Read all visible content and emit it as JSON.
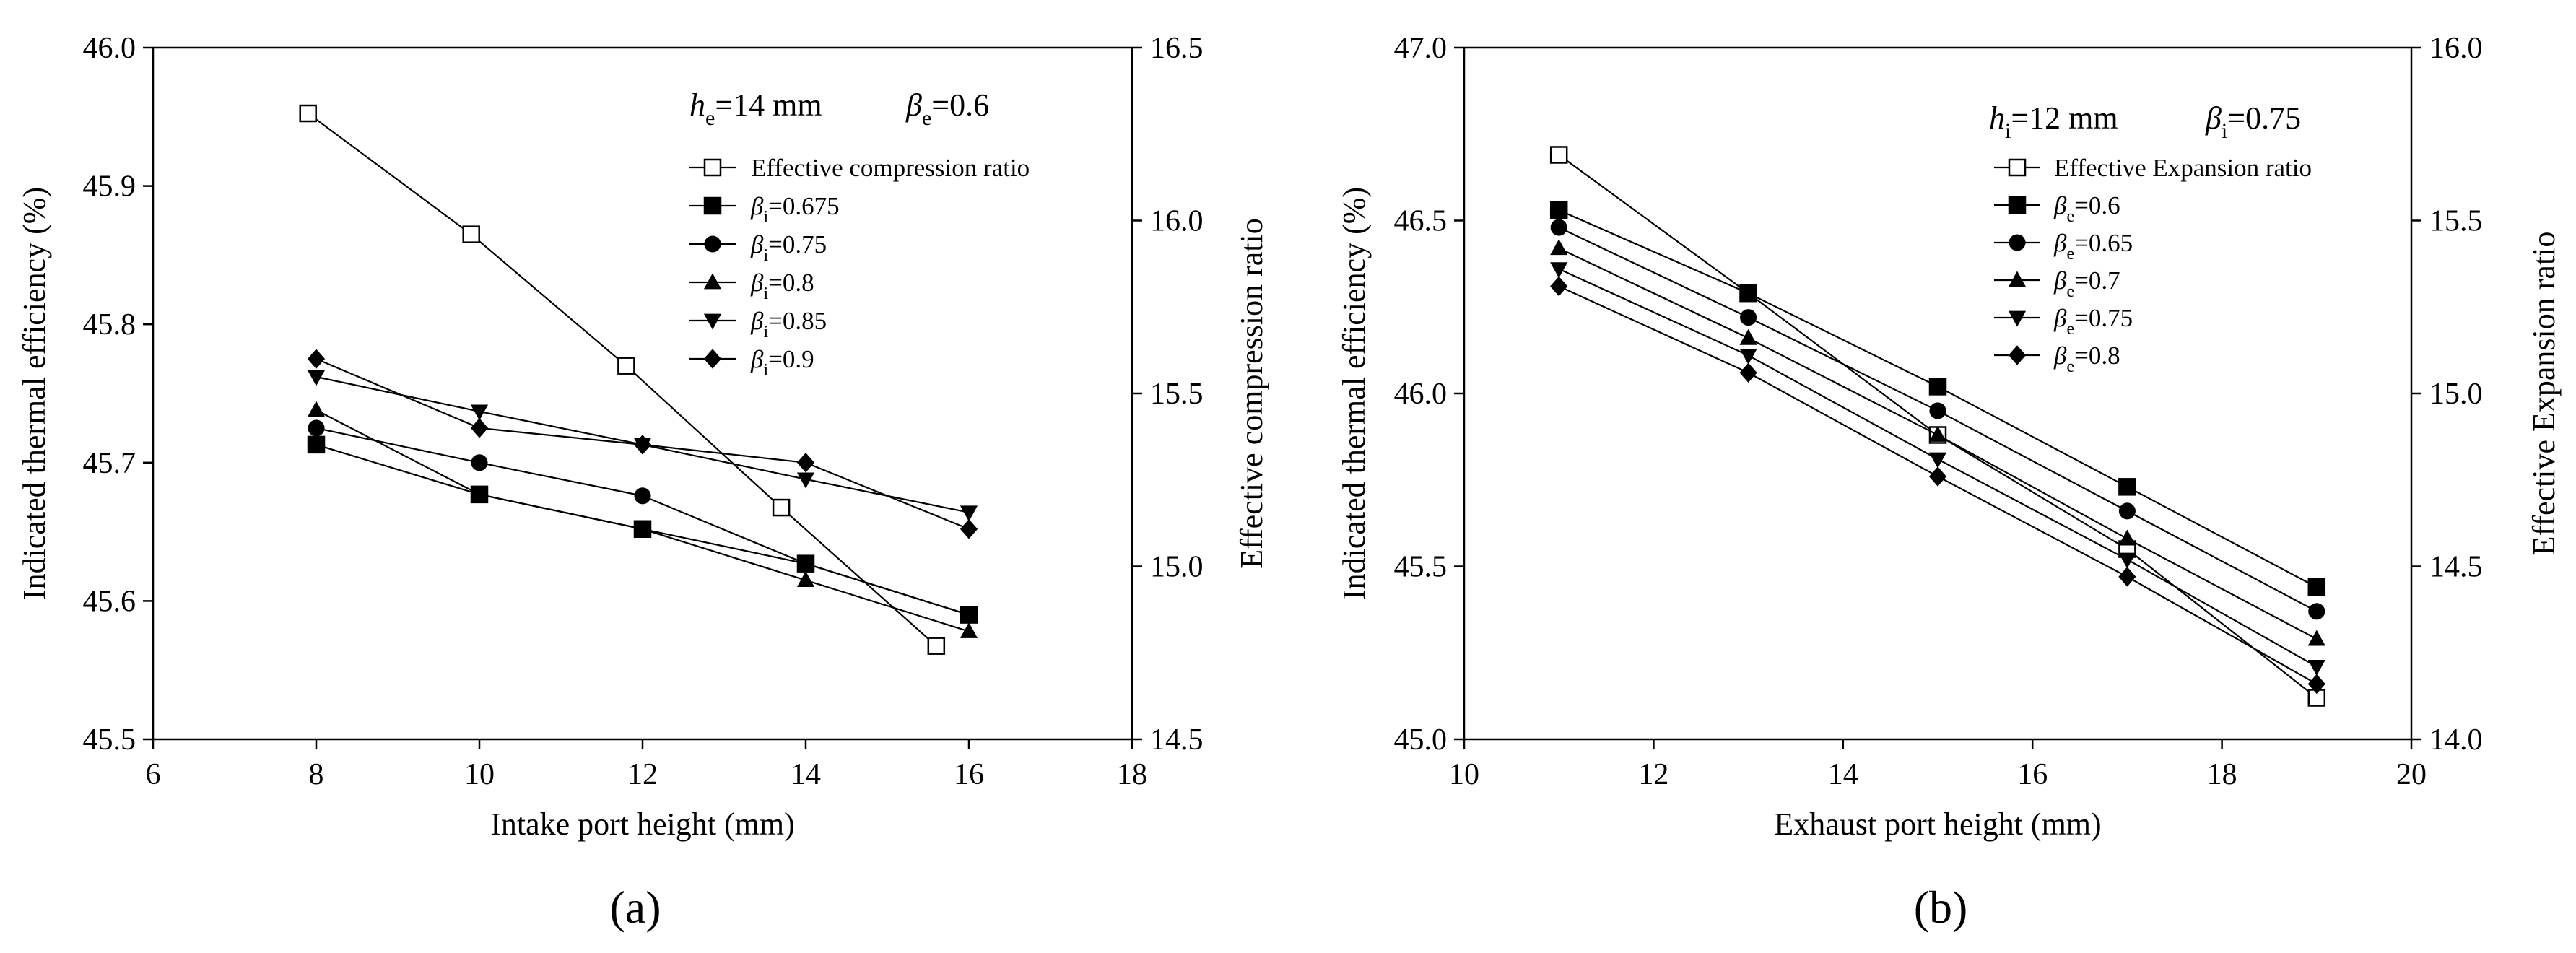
{
  "chart_data": [
    {
      "type": "line",
      "panel_label": "(a)",
      "xlabel": "Intake port height (mm)",
      "ylabel": "Indicated thermal efficiency (%)",
      "y2label": "Effective compression ratio",
      "xlim": [
        6,
        18
      ],
      "ylim": [
        45.5,
        46.0
      ],
      "y2lim": [
        14.5,
        16.5
      ],
      "xticks": [
        "6",
        "8",
        "10",
        "12",
        "14",
        "16",
        "18"
      ],
      "yticks": [
        "45.5",
        "45.6",
        "45.7",
        "45.8",
        "45.9",
        "46.0"
      ],
      "y2ticks": [
        "14.5",
        "15.0",
        "15.5",
        "16.0",
        "16.5"
      ],
      "annotation": {
        "h_sym": "h",
        "h_sub": "e",
        "h_val": "=14 mm",
        "beta_sym": "β",
        "beta_sub": "e",
        "beta_val": "=0.6"
      },
      "legend_position": "top-right",
      "series": [
        {
          "name": "Effective compression ratio",
          "label_text": "Effective compression ratio",
          "marker": "square-open",
          "axis": "right",
          "x": [
            7.9,
            9.9,
            11.8,
            13.7,
            15.6
          ],
          "y": [
            16.31,
            15.96,
            15.58,
            15.17,
            14.77
          ]
        },
        {
          "name": "βi=0.675",
          "label_sym": "β",
          "label_sub": "i",
          "label_val": "=0.675",
          "marker": "square",
          "axis": "left",
          "x": [
            8,
            10,
            12,
            14,
            16
          ],
          "y": [
            45.713,
            45.677,
            45.652,
            45.627,
            45.59
          ]
        },
        {
          "name": "βi=0.75",
          "label_sym": "β",
          "label_sub": "i",
          "label_val": "=0.75",
          "marker": "circle",
          "axis": "left",
          "x": [
            8,
            10,
            12,
            14,
            16
          ],
          "y": [
            45.725,
            45.7,
            45.676,
            45.627,
            45.59
          ]
        },
        {
          "name": "βi=0.8",
          "label_sym": "β",
          "label_sub": "i",
          "label_val": "=0.8",
          "marker": "triangle-up",
          "axis": "left",
          "x": [
            8,
            10,
            12,
            14,
            16
          ],
          "y": [
            45.738,
            45.677,
            45.652,
            45.615,
            45.578
          ]
        },
        {
          "name": "βi=0.85",
          "label_sym": "β",
          "label_sub": "i",
          "label_val": "=0.85",
          "marker": "triangle-down",
          "axis": "left",
          "x": [
            8,
            10,
            12,
            14,
            16
          ],
          "y": [
            45.762,
            45.737,
            45.713,
            45.688,
            45.664
          ]
        },
        {
          "name": "βi=0.9",
          "label_sym": "β",
          "label_sub": "i",
          "label_val": "=0.9",
          "marker": "diamond",
          "axis": "left",
          "x": [
            8,
            10,
            12,
            14,
            16
          ],
          "y": [
            45.775,
            45.725,
            45.713,
            45.7,
            45.652
          ]
        }
      ]
    },
    {
      "type": "line",
      "panel_label": "(b)",
      "xlabel": "Exhaust port height (mm)",
      "ylabel": "Indicated thermal efficiency (%)",
      "y2label": "Effective Expansion ratio",
      "xlim": [
        10,
        20
      ],
      "ylim": [
        45.0,
        47.0
      ],
      "y2lim": [
        14.0,
        16.0
      ],
      "xticks": [
        "10",
        "12",
        "14",
        "16",
        "18",
        "20"
      ],
      "yticks": [
        "45.0",
        "45.5",
        "46.0",
        "46.5",
        "47.0"
      ],
      "y2ticks": [
        "14.0",
        "14.5",
        "15.0",
        "15.5",
        "16.0"
      ],
      "annotation": {
        "h_sym": "h",
        "h_sub": "i",
        "h_val": "=12 mm",
        "beta_sym": "β",
        "beta_sub": "i",
        "beta_val": "=0.75"
      },
      "legend_position": "top-right",
      "series": [
        {
          "name": "Effective Expansion ratio",
          "label_text": "Effective Expansion ratio",
          "marker": "square-open",
          "axis": "right",
          "x": [
            11,
            13,
            15,
            17,
            19
          ],
          "y": [
            15.69,
            15.29,
            14.88,
            14.55,
            14.12
          ]
        },
        {
          "name": "βe=0.6",
          "label_sym": "β",
          "label_sub": "e",
          "label_val": "=0.6",
          "marker": "square",
          "axis": "left",
          "x": [
            11,
            13,
            15,
            17,
            19
          ],
          "y": [
            46.53,
            46.29,
            46.02,
            45.73,
            45.44
          ]
        },
        {
          "name": "βe=0.65",
          "label_sym": "β",
          "label_sub": "e",
          "label_val": "=0.65",
          "marker": "circle",
          "axis": "left",
          "x": [
            11,
            13,
            15,
            17,
            19
          ],
          "y": [
            46.48,
            46.22,
            45.95,
            45.66,
            45.37
          ]
        },
        {
          "name": "βe=0.7",
          "label_sym": "β",
          "label_sub": "e",
          "label_val": "=0.7",
          "marker": "triangle-up",
          "axis": "left",
          "x": [
            11,
            13,
            15,
            17,
            19
          ],
          "y": [
            46.42,
            46.16,
            45.88,
            45.58,
            45.29
          ]
        },
        {
          "name": "βe=0.75",
          "label_sym": "β",
          "label_sub": "e",
          "label_val": "=0.75",
          "marker": "triangle-down",
          "axis": "left",
          "x": [
            11,
            13,
            15,
            17,
            19
          ],
          "y": [
            46.36,
            46.11,
            45.81,
            45.52,
            45.21
          ]
        },
        {
          "name": "βe=0.8",
          "label_sym": "β",
          "label_sub": "e",
          "label_val": "=0.8",
          "marker": "diamond",
          "axis": "left",
          "x": [
            11,
            13,
            15,
            17,
            19
          ],
          "y": [
            46.31,
            46.06,
            45.76,
            45.47,
            45.16
          ]
        }
      ]
    }
  ]
}
